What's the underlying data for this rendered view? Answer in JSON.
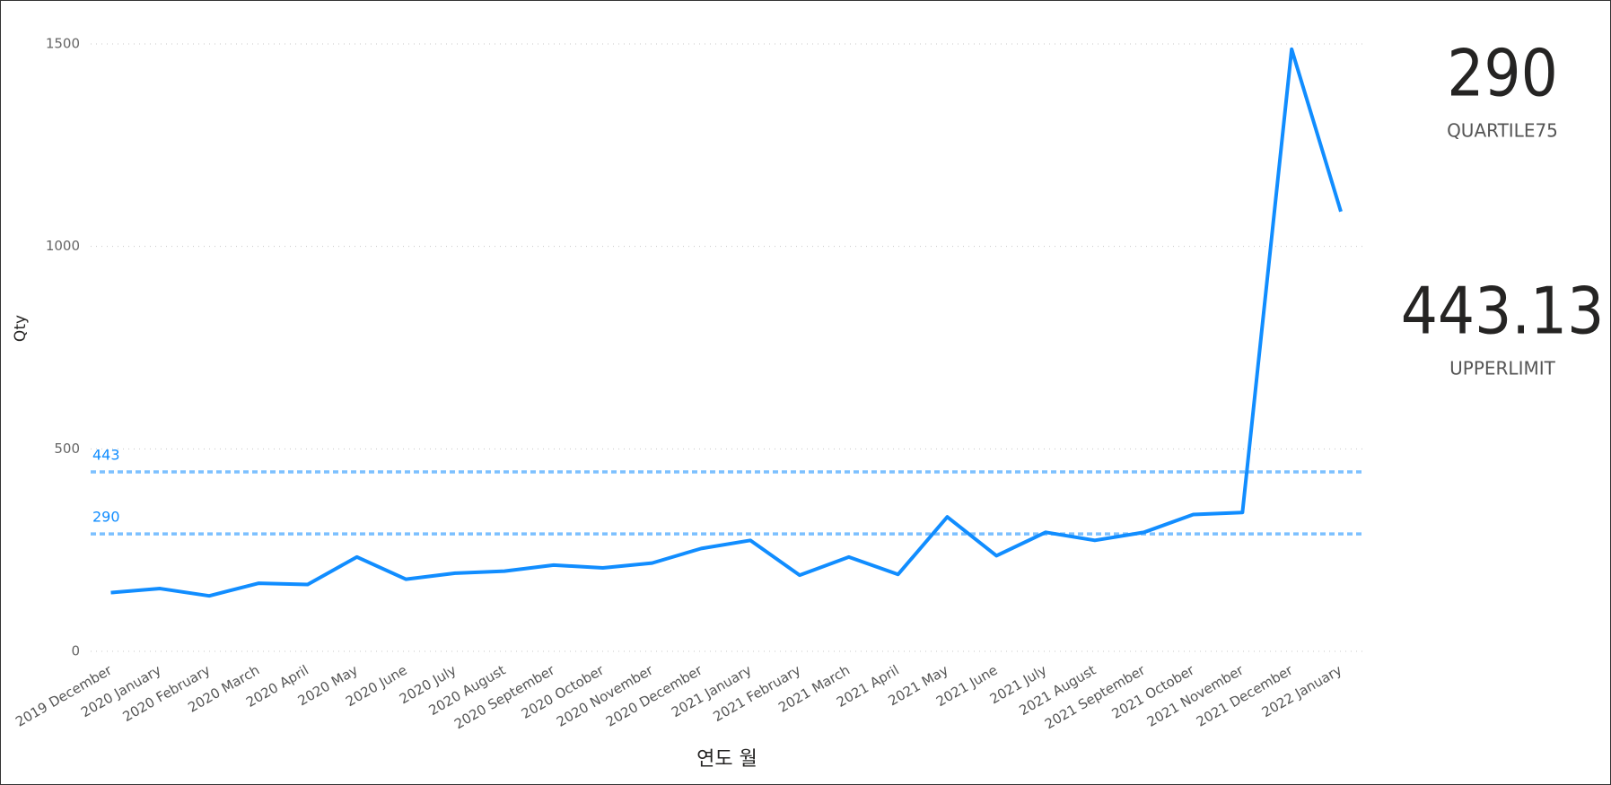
{
  "chart_data": {
    "type": "line",
    "x_label": "연도 월",
    "y_label": "Qty",
    "categories": [
      "2019 December",
      "2020 January",
      "2020 February",
      "2020 March",
      "2020 April",
      "2020 May",
      "2020 June",
      "2020 July",
      "2020 August",
      "2020 September",
      "2020 October",
      "2020 November",
      "2020 December",
      "2021 January",
      "2021 February",
      "2021 March",
      "2021 April",
      "2021 May",
      "2021 June",
      "2021 July",
      "2021 August",
      "2021 September",
      "2021 October",
      "2021 November",
      "2021 December",
      "2022 January"
    ],
    "values": [
      145,
      155,
      137,
      168,
      165,
      233,
      178,
      193,
      198,
      213,
      206,
      218,
      254,
      274,
      188,
      233,
      190,
      332,
      236,
      294,
      274,
      294,
      338,
      343,
      1487,
      1086
    ],
    "color": "#118dff",
    "reference_lines": [
      443,
      290
    ],
    "reference_color": "#7cc0ff",
    "ylim": [
      0,
      1500
    ],
    "yticks": [
      0,
      500,
      1000,
      1500
    ],
    "grid": true
  },
  "cards": [
    {
      "value": "290",
      "label": "QUARTILE75"
    },
    {
      "value": "443.13",
      "label": "UPPERLIMIT"
    }
  ]
}
